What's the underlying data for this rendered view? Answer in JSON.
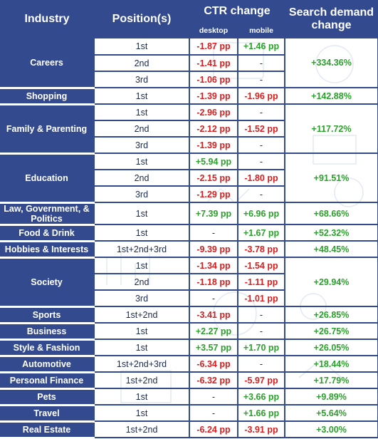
{
  "header": {
    "industry": "Industry",
    "positions": "Position(s)",
    "ctr_change": "CTR change",
    "desktop": "desktop",
    "mobile": "mobile",
    "demand": "Search demand change"
  },
  "colors": {
    "navy": "#334a8f",
    "negative": "#d81e1e",
    "positive": "#2aa12a"
  },
  "groups": [
    {
      "industry": "Careers",
      "demand": "+334.36%",
      "rows": [
        {
          "pos": "1st",
          "desktop": "-1.87 pp",
          "mobile": "+1.46 pp"
        },
        {
          "pos": "2nd",
          "desktop": "-1.41 pp",
          "mobile": "-"
        },
        {
          "pos": "3rd",
          "desktop": "-1.06 pp",
          "mobile": "-"
        }
      ]
    },
    {
      "industry": "Shopping",
      "demand": "+142.88%",
      "rows": [
        {
          "pos": "1st",
          "desktop": "-1.39 pp",
          "mobile": "-1.96 pp"
        }
      ]
    },
    {
      "industry": "Family & Parenting",
      "demand": "+117.72%",
      "rows": [
        {
          "pos": "1st",
          "desktop": "-2.96 pp",
          "mobile": "-"
        },
        {
          "pos": "2nd",
          "desktop": "-2.12 pp",
          "mobile": "-1.52 pp"
        },
        {
          "pos": "3rd",
          "desktop": "-1.39 pp",
          "mobile": "-"
        }
      ]
    },
    {
      "industry": "Education",
      "demand": "+91.51%",
      "rows": [
        {
          "pos": "1st",
          "desktop": "+5.94 pp",
          "mobile": "-"
        },
        {
          "pos": "2nd",
          "desktop": "-2.15 pp",
          "mobile": "-1.80 pp"
        },
        {
          "pos": "3rd",
          "desktop": "-1.29 pp",
          "mobile": "-"
        }
      ]
    },
    {
      "industry": "Law, Government, & Politics",
      "demand": "+68.66%",
      "rows": [
        {
          "pos": "1st",
          "desktop": "+7.39 pp",
          "mobile": "+6.96 pp"
        }
      ]
    },
    {
      "industry": "Food & Drink",
      "demand": "+52.32%",
      "rows": [
        {
          "pos": "1st",
          "desktop": "-",
          "mobile": "+1.67 pp"
        }
      ]
    },
    {
      "industry": "Hobbies & Interests",
      "demand": "+48.45%",
      "rows": [
        {
          "pos": "1st+2nd+3rd",
          "desktop": "-9.39 pp",
          "mobile": "-3.78 pp"
        }
      ]
    },
    {
      "industry": "Society",
      "demand": "+29.94%",
      "rows": [
        {
          "pos": "1st",
          "desktop": "-1.34 pp",
          "mobile": "-1.54 pp"
        },
        {
          "pos": "2nd",
          "desktop": "-1.18 pp",
          "mobile": "-1.11 pp"
        },
        {
          "pos": "3rd",
          "desktop": "-",
          "mobile": "-1.01 pp"
        }
      ]
    },
    {
      "industry": "Sports",
      "demand": "+26.85%",
      "rows": [
        {
          "pos": "1st+2nd",
          "desktop": "-3.41 pp",
          "mobile": "-"
        }
      ]
    },
    {
      "industry": "Business",
      "demand": "+26.75%",
      "rows": [
        {
          "pos": "1st",
          "desktop": "+2.27 pp",
          "mobile": "-"
        }
      ]
    },
    {
      "industry": "Style & Fashion",
      "demand": "+26.05%",
      "rows": [
        {
          "pos": "1st",
          "desktop": "+3.57 pp",
          "mobile": "+1.70 pp"
        }
      ]
    },
    {
      "industry": "Automotive",
      "demand": "+18.44%",
      "rows": [
        {
          "pos": "1st+2nd+3rd",
          "desktop": "-6.34 pp",
          "mobile": "-"
        }
      ]
    },
    {
      "industry": "Personal Finance",
      "demand": "+17.79%",
      "rows": [
        {
          "pos": "1st+2nd",
          "desktop": "-6.32 pp",
          "mobile": "-5.97 pp"
        }
      ]
    },
    {
      "industry": "Pets",
      "demand": "+9.89%",
      "rows": [
        {
          "pos": "1st",
          "desktop": "-",
          "mobile": "+3.66 pp"
        }
      ]
    },
    {
      "industry": "Travel",
      "demand": "+5.64%",
      "rows": [
        {
          "pos": "1st",
          "desktop": "-",
          "mobile": "+1.66 pp"
        }
      ]
    },
    {
      "industry": "Real Estate",
      "demand": "+3.00%",
      "rows": [
        {
          "pos": "1st+2nd",
          "desktop": "-6.24 pp",
          "mobile": "-3.91 pp"
        }
      ]
    }
  ]
}
